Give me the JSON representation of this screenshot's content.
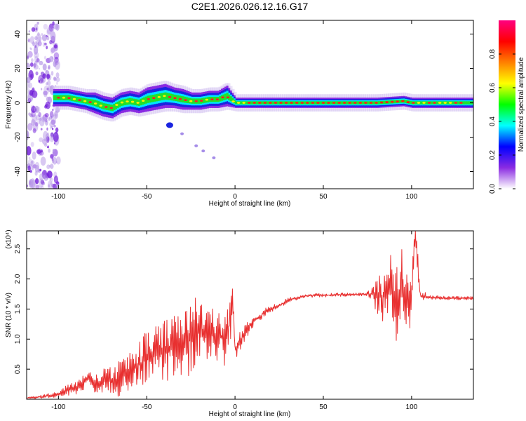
{
  "title": "C2E1.2026.026.12.16.G17",
  "chart_data": [
    {
      "type": "heatmap",
      "xlabel": "Height of straight line (km)",
      "ylabel": "Frequency (Hz)",
      "xlim": [
        -118,
        135
      ],
      "ylim": [
        -50,
        48
      ],
      "x_ticks": [
        -100,
        -50,
        0,
        50,
        100
      ],
      "x_tick_labels": [
        "-100",
        "-50",
        "0",
        "50",
        "100"
      ],
      "y_ticks": [
        -40,
        -20,
        0,
        20,
        40
      ],
      "y_tick_labels": [
        "-40",
        "-20",
        "0",
        "20",
        "40"
      ],
      "colorbar": {
        "label": "Normalized spectral amplitude",
        "range": [
          0,
          1
        ],
        "ticks": [
          0.0,
          0.2,
          0.4,
          0.6,
          0.8
        ],
        "tick_labels": [
          "0.0",
          "0.2",
          "0.4",
          "0.6",
          "0.8"
        ],
        "colors": [
          "#ffffff",
          "#8a2be2",
          "#0000ff",
          "#00ffff",
          "#00ff00",
          "#ffff00",
          "#ff8000",
          "#ff0000",
          "#ff0080"
        ]
      },
      "ridge": {
        "x": [
          -103,
          -95,
          -90,
          -85,
          -80,
          -75,
          -70,
          -65,
          -60,
          -55,
          -50,
          -45,
          -40,
          -35,
          -30,
          -25,
          -20,
          -15,
          -10,
          -5,
          0,
          10,
          20,
          40,
          60,
          80,
          95,
          100,
          105,
          120,
          135
        ],
        "y": [
          3,
          3,
          2,
          1,
          0,
          -2,
          -3,
          0,
          1,
          0,
          2,
          3,
          4,
          3,
          2,
          1,
          1,
          2,
          2,
          4,
          0,
          0,
          0,
          0,
          0,
          0,
          1,
          0,
          0,
          0,
          0
        ],
        "width": [
          5,
          5,
          5,
          5,
          6,
          6,
          6,
          6,
          6,
          6,
          7,
          7,
          7,
          6,
          6,
          5,
          5,
          5,
          5,
          6,
          3,
          3,
          3,
          3,
          3,
          3,
          3,
          3,
          3,
          3,
          3
        ]
      },
      "scatter_blobs": {
        "x": [
          -37,
          -30,
          -22,
          -18,
          -12
        ],
        "y": [
          -13,
          -18,
          -25,
          -28,
          -32
        ]
      }
    },
    {
      "type": "line",
      "xlabel": "Height of straight line (km)",
      "ylabel": "SNR (10 * v/v)",
      "y_multiplier": "(x10⁴)",
      "xlim": [
        -118,
        135
      ],
      "ylim": [
        0,
        2.8
      ],
      "x_ticks": [
        -100,
        -50,
        0,
        50,
        100
      ],
      "x_tick_labels": [
        "-100",
        "-50",
        "0",
        "50",
        "100"
      ],
      "y_ticks": [
        0.5,
        1.0,
        1.5,
        2.0,
        2.5
      ],
      "y_tick_labels": [
        "0.5",
        "1.0",
        "1.5",
        "2.0",
        "2.5"
      ],
      "color": "#e83030",
      "series": [
        {
          "x": [
            -118,
            -110,
            -100,
            -95,
            -90,
            -85,
            -82,
            -80,
            -75,
            -70,
            -65,
            -60,
            -55,
            -50,
            -45,
            -40,
            -35,
            -30,
            -25,
            -22,
            -20,
            -15,
            -10,
            -5,
            -1,
            0,
            5,
            10,
            15,
            20,
            25,
            30,
            40,
            50,
            60,
            70,
            75,
            80,
            85,
            88,
            90,
            93,
            95,
            98,
            100,
            102,
            105,
            110,
            120,
            130,
            135
          ],
          "y": [
            0.02,
            0.04,
            0.08,
            0.14,
            0.2,
            0.3,
            0.35,
            0.25,
            0.3,
            0.3,
            0.35,
            0.45,
            0.55,
            0.7,
            0.75,
            0.8,
            0.85,
            0.9,
            1.0,
            1.1,
            1.2,
            1.1,
            1.0,
            1.05,
            1.5,
            0.8,
            1.1,
            1.3,
            1.4,
            1.5,
            1.55,
            1.65,
            1.72,
            1.73,
            1.74,
            1.74,
            1.75,
            1.75,
            1.7,
            1.9,
            1.4,
            1.7,
            2.0,
            1.5,
            1.8,
            2.8,
            1.72,
            1.7,
            1.68,
            1.68,
            1.68
          ],
          "amp": [
            0.01,
            0.03,
            0.06,
            0.1,
            0.12,
            0.14,
            0.14,
            0.15,
            0.2,
            0.25,
            0.3,
            0.35,
            0.4,
            0.45,
            0.5,
            0.5,
            0.55,
            0.55,
            0.6,
            0.6,
            0.5,
            0.45,
            0.45,
            0.5,
            0.4,
            0.2,
            0.15,
            0.12,
            0.08,
            0.06,
            0.05,
            0.04,
            0.03,
            0.03,
            0.03,
            0.03,
            0.04,
            0.3,
            0.5,
            0.6,
            0.7,
            0.6,
            0.6,
            0.5,
            0.5,
            0.3,
            0.1,
            0.04,
            0.03,
            0.03,
            0.03
          ]
        }
      ]
    }
  ]
}
